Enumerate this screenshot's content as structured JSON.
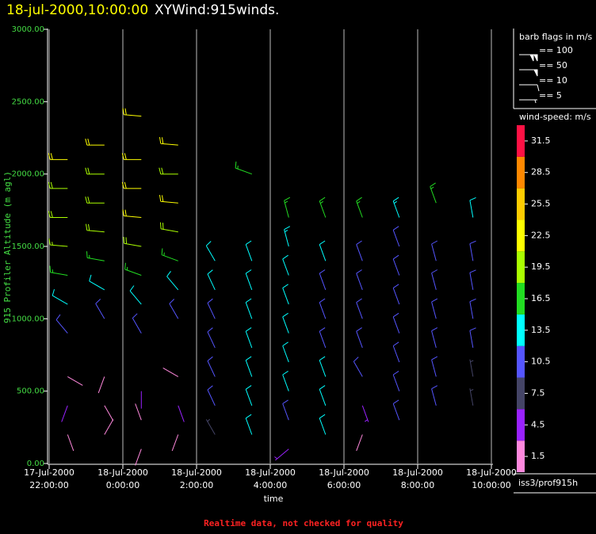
{
  "chart_data": {
    "type": "wind-barb",
    "title": "18-jul-2000,10:00:00",
    "subtitle": "XYWind:915winds.",
    "y_label": "915 Profiler Altitude (m agl)",
    "x_label": "time",
    "footer": "Realtime data, not checked for quality",
    "source": "iss3/prof915h",
    "xlim": [
      "2000-07-17T22:00:00",
      "2000-07-18T10:00:00"
    ],
    "xticks": [
      {
        "value": "2000-07-17T22:00:00",
        "label": [
          "17-Jul-2000",
          "22:00:00"
        ]
      },
      {
        "value": "2000-07-18T00:00:00",
        "label": [
          "18-Jul-2000",
          "0:00:00"
        ]
      },
      {
        "value": "2000-07-18T02:00:00",
        "label": [
          "18-Jul-2000",
          "2:00:00"
        ]
      },
      {
        "value": "2000-07-18T04:00:00",
        "label": [
          "18-Jul-2000",
          "4:00:00"
        ]
      },
      {
        "value": "2000-07-18T06:00:00",
        "label": [
          "18-Jul-2000",
          "6:00:00"
        ]
      },
      {
        "value": "2000-07-18T08:00:00",
        "label": [
          "18-Jul-2000",
          "8:00:00"
        ]
      },
      {
        "value": "2000-07-18T10:00:00",
        "label": [
          "18-Jul-2000",
          "10:00:00"
        ]
      }
    ],
    "ylim": [
      0,
      3000
    ],
    "yticks": [
      {
        "value": 0,
        "label": "0.00"
      },
      {
        "value": 500,
        "label": "500.00"
      },
      {
        "value": 1000,
        "label": "1000.00"
      },
      {
        "value": 1500,
        "label": "1500.00"
      },
      {
        "value": 2000,
        "label": "2000.00"
      },
      {
        "value": 2500,
        "label": "2500.00"
      },
      {
        "value": 3000,
        "label": "3000.00"
      }
    ],
    "grid": true,
    "barb_legend": {
      "title": "barb flags in m/s",
      "entries": [
        {
          "value": 100,
          "label": "== 100"
        },
        {
          "value": 50,
          "label": "== 50"
        },
        {
          "value": 10,
          "label": "== 10"
        },
        {
          "value": 5,
          "label": "== 5"
        }
      ]
    },
    "colorbar": {
      "title": "wind-speed: m/s",
      "labels": [
        1.5,
        4.5,
        7.5,
        10.5,
        13.5,
        16.5,
        19.5,
        22.5,
        25.5,
        28.5,
        31.5
      ],
      "colors": [
        "#ff88dd",
        "#9922ff",
        "#444466",
        "#5555ff",
        "#00ffff",
        "#22dd22",
        "#aaff00",
        "#ffff00",
        "#ffcc00",
        "#ff8800",
        "#ff1144"
      ]
    },
    "barbs": {
      "x": [
        "2000-07-17T22:30:00",
        "2000-07-17T22:30:00",
        "2000-07-17T22:30:00",
        "2000-07-17T22:30:00",
        "2000-07-17T22:30:00",
        "2000-07-17T22:30:00",
        "2000-07-17T22:30:00",
        "2000-07-17T22:30:00",
        "2000-07-17T22:30:00",
        "2000-07-17T22:30:00",
        "2000-07-17T23:30:00",
        "2000-07-17T23:30:00",
        "2000-07-17T23:30:00",
        "2000-07-17T23:30:00",
        "2000-07-17T23:30:00",
        "2000-07-17T23:30:00",
        "2000-07-17T23:30:00",
        "2000-07-17T23:30:00",
        "2000-07-17T23:30:00",
        "2000-07-17T23:30:00",
        "2000-07-18T00:30:00",
        "2000-07-18T00:30:00",
        "2000-07-18T00:30:00",
        "2000-07-18T00:30:00",
        "2000-07-18T00:30:00",
        "2000-07-18T00:30:00",
        "2000-07-18T00:30:00",
        "2000-07-18T00:30:00",
        "2000-07-18T00:30:00",
        "2000-07-18T00:30:00",
        "2000-07-18T00:30:00",
        "2000-07-18T01:30:00",
        "2000-07-18T01:30:00",
        "2000-07-18T01:30:00",
        "2000-07-18T01:30:00",
        "2000-07-18T01:30:00",
        "2000-07-18T01:30:00",
        "2000-07-18T01:30:00",
        "2000-07-18T01:30:00",
        "2000-07-18T01:30:00",
        "2000-07-18T01:30:00",
        "2000-07-18T02:30:00",
        "2000-07-18T02:30:00",
        "2000-07-18T02:30:00",
        "2000-07-18T02:30:00",
        "2000-07-18T02:30:00",
        "2000-07-18T02:30:00",
        "2000-07-18T02:30:00",
        "2000-07-18T03:30:00",
        "2000-07-18T03:30:00",
        "2000-07-18T03:30:00",
        "2000-07-18T03:30:00",
        "2000-07-18T03:30:00",
        "2000-07-18T03:30:00",
        "2000-07-18T03:30:00",
        "2000-07-18T03:30:00",
        "2000-07-18T04:30:00",
        "2000-07-18T04:30:00",
        "2000-07-18T04:30:00",
        "2000-07-18T04:30:00",
        "2000-07-18T04:30:00",
        "2000-07-18T04:30:00",
        "2000-07-18T04:30:00",
        "2000-07-18T04:30:00",
        "2000-07-18T04:30:00",
        "2000-07-18T05:30:00",
        "2000-07-18T05:30:00",
        "2000-07-18T05:30:00",
        "2000-07-18T05:30:00",
        "2000-07-18T05:30:00",
        "2000-07-18T05:30:00",
        "2000-07-18T05:30:00",
        "2000-07-18T05:30:00",
        "2000-07-18T06:30:00",
        "2000-07-18T06:30:00",
        "2000-07-18T06:30:00",
        "2000-07-18T06:30:00",
        "2000-07-18T06:30:00",
        "2000-07-18T06:30:00",
        "2000-07-18T06:30:00",
        "2000-07-18T06:30:00",
        "2000-07-18T07:30:00",
        "2000-07-18T07:30:00",
        "2000-07-18T07:30:00",
        "2000-07-18T07:30:00",
        "2000-07-18T07:30:00",
        "2000-07-18T07:30:00",
        "2000-07-18T07:30:00",
        "2000-07-18T07:30:00",
        "2000-07-18T08:30:00",
        "2000-07-18T08:30:00",
        "2000-07-18T08:30:00",
        "2000-07-18T08:30:00",
        "2000-07-18T08:30:00",
        "2000-07-18T08:30:00",
        "2000-07-18T08:30:00",
        "2000-07-18T09:30:00",
        "2000-07-18T09:30:00",
        "2000-07-18T09:30:00",
        "2000-07-18T09:30:00",
        "2000-07-18T09:30:00",
        "2000-07-18T09:30:00",
        "2000-07-18T09:30:00"
      ],
      "altitude": [
        200,
        400,
        600,
        900,
        1100,
        1300,
        1500,
        1700,
        1900,
        2100,
        200,
        400,
        600,
        1000,
        1200,
        1400,
        1600,
        1800,
        2000,
        2200,
        100,
        300,
        500,
        900,
        1100,
        1300,
        1500,
        1700,
        1900,
        2100,
        2400,
        200,
        400,
        600,
        1000,
        1200,
        1400,
        1600,
        1800,
        2000,
        2200,
        200,
        400,
        600,
        800,
        1000,
        1200,
        1400,
        200,
        400,
        600,
        800,
        1000,
        1200,
        1400,
        2000,
        100,
        300,
        500,
        700,
        900,
        1100,
        1300,
        1500,
        1700,
        200,
        400,
        600,
        800,
        1000,
        1200,
        1400,
        1700,
        200,
        400,
        600,
        800,
        1000,
        1200,
        1400,
        1700,
        300,
        500,
        700,
        900,
        1100,
        1300,
        1500,
        1700,
        400,
        600,
        800,
        1000,
        1200,
        1400,
        1800,
        400,
        600,
        800,
        1000,
        1200,
        1400,
        1700
      ],
      "speed": [
        3,
        4,
        2,
        10,
        13,
        16,
        19,
        20,
        21,
        22,
        3,
        2,
        3,
        11,
        14,
        17,
        20,
        21,
        21,
        23,
        2,
        3,
        4,
        12,
        13,
        18,
        20,
        23,
        22,
        22,
        23,
        3,
        4,
        2,
        12,
        13,
        18,
        20,
        22,
        21,
        24,
        8,
        10,
        11,
        12,
        12,
        13,
        14,
        13,
        13,
        13,
        13,
        13,
        14,
        14,
        18,
        5,
        12,
        13,
        13,
        13,
        13,
        14,
        15,
        17,
        13,
        13,
        13,
        12,
        12,
        12,
        13,
        18,
        3,
        5,
        10,
        11,
        11,
        11,
        11,
        16,
        10,
        11,
        11,
        11,
        11,
        11,
        11,
        15,
        10,
        10,
        10,
        10,
        10,
        10,
        18,
        9,
        9,
        10,
        10,
        10,
        11,
        13
      ],
      "direction": [
        160,
        200,
        120,
        320,
        300,
        280,
        275,
        270,
        270,
        270,
        30,
        150,
        200,
        330,
        300,
        280,
        275,
        270,
        270,
        270,
        200,
        340,
        180,
        330,
        320,
        290,
        280,
        275,
        270,
        270,
        275,
        200,
        160,
        300,
        330,
        320,
        290,
        280,
        275,
        270,
        275,
        330,
        335,
        335,
        335,
        335,
        335,
        330,
        340,
        340,
        340,
        340,
        340,
        340,
        340,
        290,
        230,
        340,
        340,
        340,
        340,
        340,
        340,
        345,
        345,
        340,
        340,
        340,
        340,
        340,
        340,
        340,
        340,
        200,
        160,
        330,
        340,
        340,
        340,
        340,
        340,
        340,
        340,
        340,
        340,
        340,
        340,
        340,
        340,
        345,
        345,
        345,
        345,
        345,
        345,
        340,
        350,
        350,
        350,
        350,
        350,
        350,
        350
      ]
    }
  }
}
